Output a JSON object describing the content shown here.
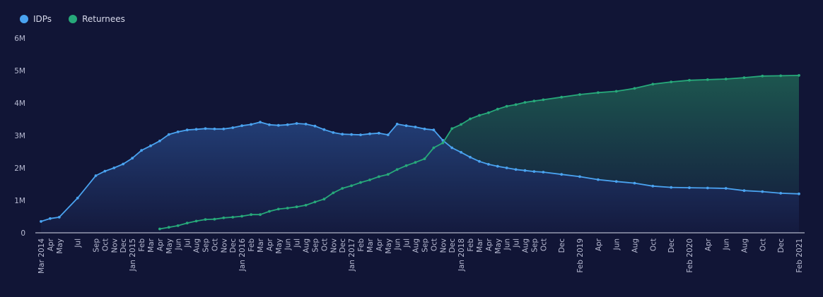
{
  "chart_data": {
    "type": "area",
    "series": [
      {
        "name": "IDPs",
        "color": "#4aa3f0",
        "points": [
          [
            "2014-03",
            0.35
          ],
          [
            "2014-04",
            0.44
          ],
          [
            "2014-05",
            0.48
          ],
          [
            "2014-07",
            1.07
          ],
          [
            "2014-09",
            1.76
          ],
          [
            "2014-10",
            1.9
          ],
          [
            "2014-11",
            2.0
          ],
          [
            "2014-12",
            2.12
          ],
          [
            "2015-01",
            2.3
          ],
          [
            "2015-02",
            2.54
          ],
          [
            "2015-03",
            2.68
          ],
          [
            "2015-04",
            2.83
          ],
          [
            "2015-05",
            3.03
          ],
          [
            "2015-06",
            3.11
          ],
          [
            "2015-07",
            3.17
          ],
          [
            "2015-08",
            3.19
          ],
          [
            "2015-09",
            3.21
          ],
          [
            "2015-10",
            3.2
          ],
          [
            "2015-11",
            3.2
          ],
          [
            "2015-12",
            3.24
          ],
          [
            "2016-01",
            3.3
          ],
          [
            "2016-02",
            3.34
          ],
          [
            "2016-03",
            3.41
          ],
          [
            "2016-04",
            3.33
          ],
          [
            "2016-05",
            3.31
          ],
          [
            "2016-06",
            3.33
          ],
          [
            "2016-07",
            3.37
          ],
          [
            "2016-08",
            3.35
          ],
          [
            "2016-09",
            3.29
          ],
          [
            "2016-10",
            3.18
          ],
          [
            "2016-11",
            3.09
          ],
          [
            "2016-12",
            3.04
          ],
          [
            "2017-01",
            3.03
          ],
          [
            "2017-02",
            3.02
          ],
          [
            "2017-03",
            3.05
          ],
          [
            "2017-04",
            3.07
          ],
          [
            "2017-05",
            3.02
          ],
          [
            "2017-06",
            3.35
          ],
          [
            "2017-07",
            3.3
          ],
          [
            "2017-08",
            3.26
          ],
          [
            "2017-09",
            3.2
          ],
          [
            "2017-10",
            3.17
          ],
          [
            "2017-11",
            2.85
          ],
          [
            "2017-12",
            2.62
          ],
          [
            "2018-01",
            2.48
          ],
          [
            "2018-02",
            2.33
          ],
          [
            "2018-03",
            2.2
          ],
          [
            "2018-04",
            2.11
          ],
          [
            "2018-05",
            2.05
          ],
          [
            "2018-06",
            2.0
          ],
          [
            "2018-07",
            1.95
          ],
          [
            "2018-08",
            1.92
          ],
          [
            "2018-09",
            1.89
          ],
          [
            "2018-10",
            1.87
          ],
          [
            "2018-12",
            1.8
          ],
          [
            "2019-02",
            1.73
          ],
          [
            "2019-04",
            1.64
          ],
          [
            "2019-06",
            1.58
          ],
          [
            "2019-08",
            1.53
          ],
          [
            "2019-10",
            1.44
          ],
          [
            "2019-12",
            1.4
          ],
          [
            "2020-02",
            1.39
          ],
          [
            "2020-04",
            1.38
          ],
          [
            "2020-06",
            1.37
          ],
          [
            "2020-08",
            1.3
          ],
          [
            "2020-10",
            1.27
          ],
          [
            "2020-12",
            1.22
          ],
          [
            "2021-02",
            1.2
          ]
        ]
      },
      {
        "name": "Returnees",
        "color": "#27a97a",
        "points": [
          [
            "2015-04",
            0.12
          ],
          [
            "2015-05",
            0.17
          ],
          [
            "2015-06",
            0.22
          ],
          [
            "2015-07",
            0.3
          ],
          [
            "2015-08",
            0.36
          ],
          [
            "2015-09",
            0.41
          ],
          [
            "2015-10",
            0.42
          ],
          [
            "2015-11",
            0.46
          ],
          [
            "2015-12",
            0.48
          ],
          [
            "2016-01",
            0.51
          ],
          [
            "2016-02",
            0.56
          ],
          [
            "2016-03",
            0.56
          ],
          [
            "2016-04",
            0.66
          ],
          [
            "2016-05",
            0.73
          ],
          [
            "2016-06",
            0.76
          ],
          [
            "2016-07",
            0.8
          ],
          [
            "2016-08",
            0.85
          ],
          [
            "2016-09",
            0.95
          ],
          [
            "2016-10",
            1.04
          ],
          [
            "2016-11",
            1.23
          ],
          [
            "2016-12",
            1.37
          ],
          [
            "2017-01",
            1.45
          ],
          [
            "2017-02",
            1.55
          ],
          [
            "2017-03",
            1.63
          ],
          [
            "2017-04",
            1.73
          ],
          [
            "2017-05",
            1.8
          ],
          [
            "2017-06",
            1.95
          ],
          [
            "2017-07",
            2.07
          ],
          [
            "2017-08",
            2.17
          ],
          [
            "2017-09",
            2.28
          ],
          [
            "2017-10",
            2.62
          ],
          [
            "2017-11",
            2.77
          ],
          [
            "2017-12",
            3.21
          ],
          [
            "2018-01",
            3.34
          ],
          [
            "2018-02",
            3.51
          ],
          [
            "2018-03",
            3.62
          ],
          [
            "2018-04",
            3.7
          ],
          [
            "2018-05",
            3.81
          ],
          [
            "2018-06",
            3.9
          ],
          [
            "2018-07",
            3.95
          ],
          [
            "2018-08",
            4.02
          ],
          [
            "2018-09",
            4.06
          ],
          [
            "2018-10",
            4.1
          ],
          [
            "2018-12",
            4.18
          ],
          [
            "2019-02",
            4.26
          ],
          [
            "2019-04",
            4.32
          ],
          [
            "2019-06",
            4.36
          ],
          [
            "2019-08",
            4.45
          ],
          [
            "2019-10",
            4.58
          ],
          [
            "2019-12",
            4.65
          ],
          [
            "2020-02",
            4.7
          ],
          [
            "2020-04",
            4.72
          ],
          [
            "2020-06",
            4.74
          ],
          [
            "2020-08",
            4.78
          ],
          [
            "2020-10",
            4.83
          ],
          [
            "2020-12",
            4.84
          ],
          [
            "2021-02",
            4.85
          ]
        ]
      }
    ],
    "y_ticks": [
      {
        "value": 0,
        "label": "0"
      },
      {
        "value": 1,
        "label": "1M"
      },
      {
        "value": 2,
        "label": "2M"
      },
      {
        "value": 3,
        "label": "3M"
      },
      {
        "value": 4,
        "label": "4M"
      },
      {
        "value": 5,
        "label": "5M"
      },
      {
        "value": 6,
        "label": "6M"
      }
    ],
    "x_ticks": [
      [
        "2014-03",
        "Mar 2014"
      ],
      [
        "2014-04",
        "Apr"
      ],
      [
        "2014-05",
        "May"
      ],
      [
        "2014-07",
        "Jul"
      ],
      [
        "2014-09",
        "Sep"
      ],
      [
        "2014-10",
        "Oct"
      ],
      [
        "2014-11",
        "Nov"
      ],
      [
        "2014-12",
        "Dec"
      ],
      [
        "2015-01",
        "Jan 2015"
      ],
      [
        "2015-02",
        "Feb"
      ],
      [
        "2015-03",
        "Mar"
      ],
      [
        "2015-04",
        "Apr"
      ],
      [
        "2015-05",
        "May"
      ],
      [
        "2015-06",
        "Jun"
      ],
      [
        "2015-07",
        "Jul"
      ],
      [
        "2015-08",
        "Aug"
      ],
      [
        "2015-09",
        "Sep"
      ],
      [
        "2015-10",
        "Oct"
      ],
      [
        "2015-11",
        "Nov"
      ],
      [
        "2015-12",
        "Dec"
      ],
      [
        "2016-01",
        "Jan 2016"
      ],
      [
        "2016-02",
        "Feb"
      ],
      [
        "2016-03",
        "Mar"
      ],
      [
        "2016-04",
        "Apr"
      ],
      [
        "2016-05",
        "May"
      ],
      [
        "2016-06",
        "Jun"
      ],
      [
        "2016-07",
        "Jul"
      ],
      [
        "2016-08",
        "Aug"
      ],
      [
        "2016-09",
        "Sep"
      ],
      [
        "2016-10",
        "Oct"
      ],
      [
        "2016-11",
        "Nov"
      ],
      [
        "2016-12",
        "Dec"
      ],
      [
        "2017-01",
        "Jan 2017"
      ],
      [
        "2017-02",
        "Feb"
      ],
      [
        "2017-03",
        "Mar"
      ],
      [
        "2017-04",
        "Apr"
      ],
      [
        "2017-05",
        "May"
      ],
      [
        "2017-06",
        "Jun"
      ],
      [
        "2017-07",
        "Jul"
      ],
      [
        "2017-08",
        "Aug"
      ],
      [
        "2017-09",
        "Sep"
      ],
      [
        "2017-10",
        "Oct"
      ],
      [
        "2017-11",
        "Nov"
      ],
      [
        "2017-12",
        "Dec"
      ],
      [
        "2018-01",
        "Jan 2018"
      ],
      [
        "2018-02",
        "Feb"
      ],
      [
        "2018-03",
        "Mar"
      ],
      [
        "2018-04",
        "Apr"
      ],
      [
        "2018-05",
        "May"
      ],
      [
        "2018-06",
        "Jun"
      ],
      [
        "2018-07",
        "Jul"
      ],
      [
        "2018-08",
        "Aug"
      ],
      [
        "2018-09",
        "Sep"
      ],
      [
        "2018-10",
        "Oct"
      ],
      [
        "2018-12",
        "Dec"
      ],
      [
        "2019-02",
        "Feb 2019"
      ],
      [
        "2019-04",
        "Apr"
      ],
      [
        "2019-06",
        "Jun"
      ],
      [
        "2019-08",
        "Aug"
      ],
      [
        "2019-10",
        "Oct"
      ],
      [
        "2019-12",
        "Dec"
      ],
      [
        "2020-02",
        "Feb 2020"
      ],
      [
        "2020-04",
        "Apr"
      ],
      [
        "2020-06",
        "Jun"
      ],
      [
        "2020-08",
        "Aug"
      ],
      [
        "2020-10",
        "Oct"
      ],
      [
        "2020-12",
        "Dec"
      ],
      [
        "2021-02",
        "Feb 2021"
      ]
    ],
    "ylim": [
      0,
      6
    ],
    "xlim": [
      "2014-03",
      "2021-02"
    ],
    "grid": false,
    "legend_position": "top-left",
    "xlabel": "",
    "ylabel": ""
  },
  "colors": {
    "background": "#111536",
    "axis": "#d8dbea"
  }
}
